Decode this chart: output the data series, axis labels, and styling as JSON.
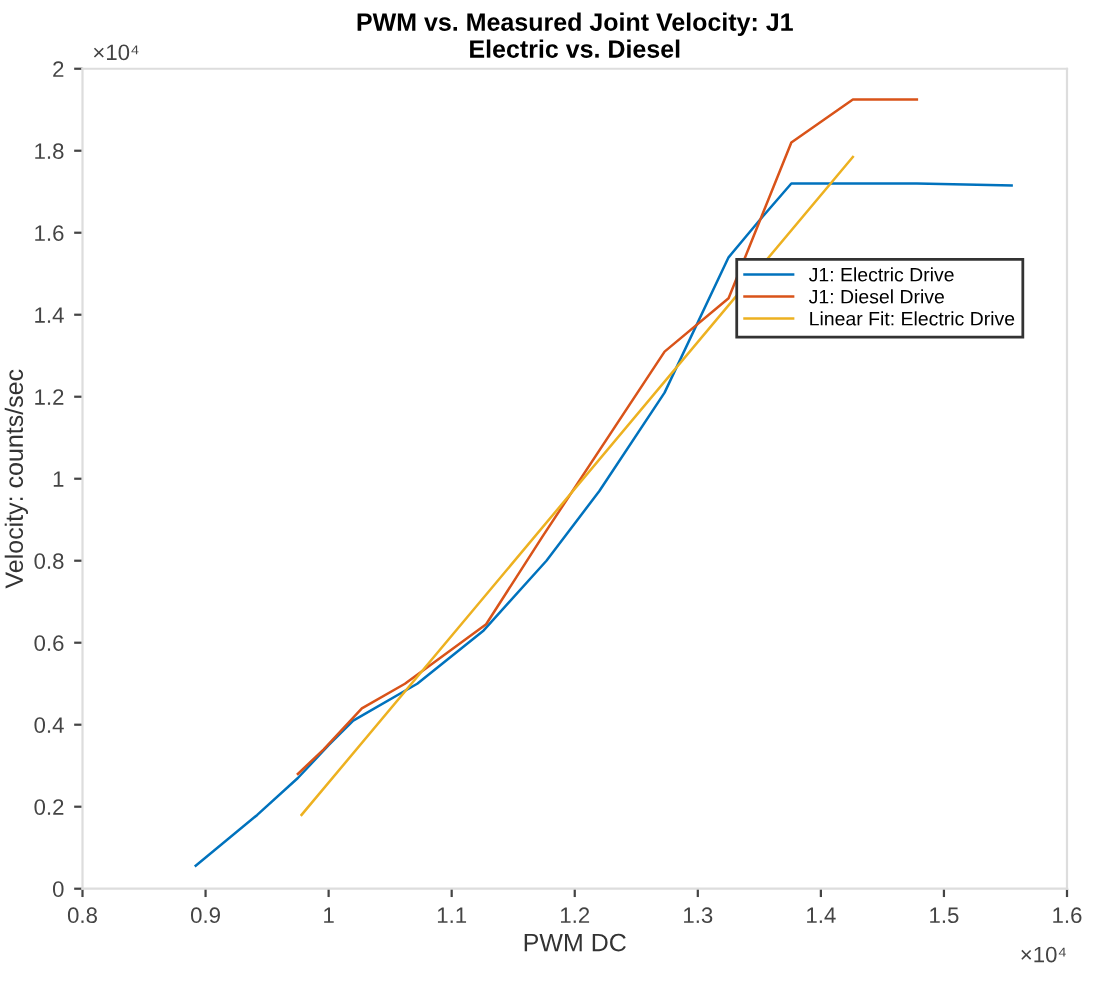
{
  "chart_data": {
    "type": "line",
    "title": "PWM vs. Measured Joint Velocity: J1",
    "subtitle": "Electric vs. Diesel",
    "xlabel": "PWM DC",
    "ylabel": "Velocity: counts/sec",
    "annotations": [
      "×10⁴",
      "×10⁴"
    ],
    "series": [
      {
        "name": "J1: Electric Drive",
        "color": "#0072bd",
        "x": [
          0.892,
          0.942,
          0.975,
          1.0,
          1.02,
          1.072,
          1.126,
          1.177,
          1.22,
          1.273,
          1.325,
          1.35,
          1.376,
          1.396,
          1.478,
          1.555
        ],
        "values": [
          0.056,
          0.18,
          0.27,
          0.35,
          0.41,
          0.5,
          0.63,
          0.8,
          0.97,
          1.21,
          1.54,
          1.63,
          1.72,
          1.72,
          1.72,
          1.715
        ]
      },
      {
        "name": "J1: Diesel Drive",
        "color": "#d95319",
        "x": [
          0.975,
          0.996,
          1.027,
          1.062,
          1.128,
          1.174,
          1.273,
          1.325,
          1.376,
          1.426,
          1.478
        ],
        "values": [
          0.28,
          0.34,
          0.44,
          0.5,
          0.645,
          0.86,
          1.31,
          1.44,
          1.82,
          1.925,
          1.925
        ]
      },
      {
        "name": "Linear Fit: Electric Drive",
        "color": "#edb120",
        "x": [
          0.978,
          1.426
        ],
        "values": [
          0.18,
          1.785
        ]
      }
    ],
    "xlim": [
      0.8,
      1.6
    ],
    "xticks": [
      0.8,
      0.9,
      1,
      1.1,
      1.2,
      1.3,
      1.4,
      1.5,
      1.6
    ],
    "ylim": [
      0,
      2
    ],
    "yticks": [
      0,
      0.2,
      0.4,
      0.6,
      0.8,
      1,
      1.2,
      1.4,
      1.6,
      1.8,
      2
    ],
    "legend": "right",
    "grid": false,
    "line_style": "solid",
    "marker": "none"
  }
}
